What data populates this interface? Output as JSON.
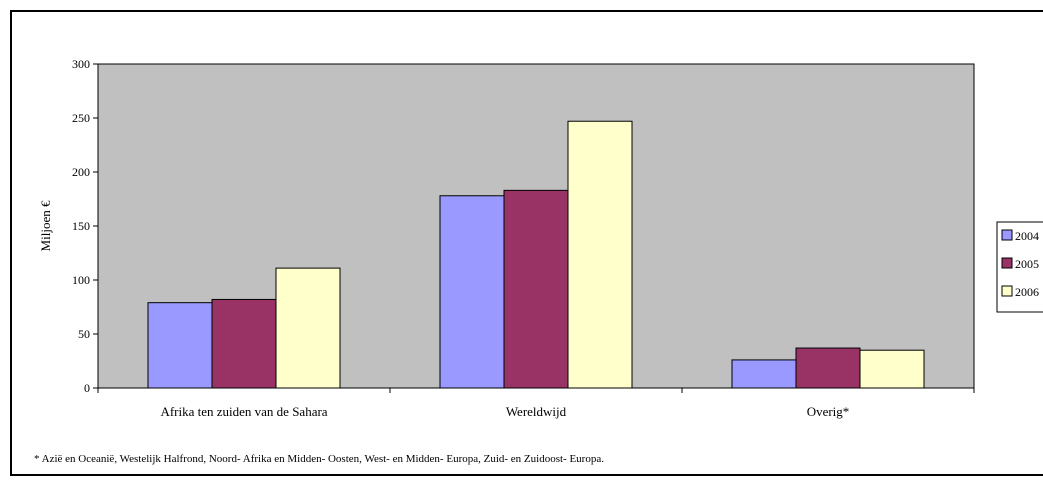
{
  "chart_data": {
    "type": "bar",
    "categories": [
      "Afrika ten zuiden van de Sahara",
      "Wereldwijd",
      "Overig*"
    ],
    "series": [
      {
        "name": "2004",
        "values": [
          79,
          178,
          26
        ],
        "color": "#9999FF"
      },
      {
        "name": "2005",
        "values": [
          82,
          183,
          37
        ],
        "color": "#993366"
      },
      {
        "name": "2006",
        "values": [
          111,
          247,
          35
        ],
        "color": "#FFFFCC"
      }
    ],
    "ylabel": "Miljoen €",
    "xlabel": "",
    "ylim": [
      0,
      300
    ],
    "yticks": [
      0,
      50,
      100,
      150,
      200,
      250,
      300
    ],
    "plot_background": "#C0C0C0",
    "grid": false,
    "legend_position": "right"
  },
  "footnote": "* Azië en Oceanië, Westelijk Halfrond, Noord- Afrika en Midden- Oosten, West- en Midden- Europa, Zuid- en Zuidoost- Europa."
}
